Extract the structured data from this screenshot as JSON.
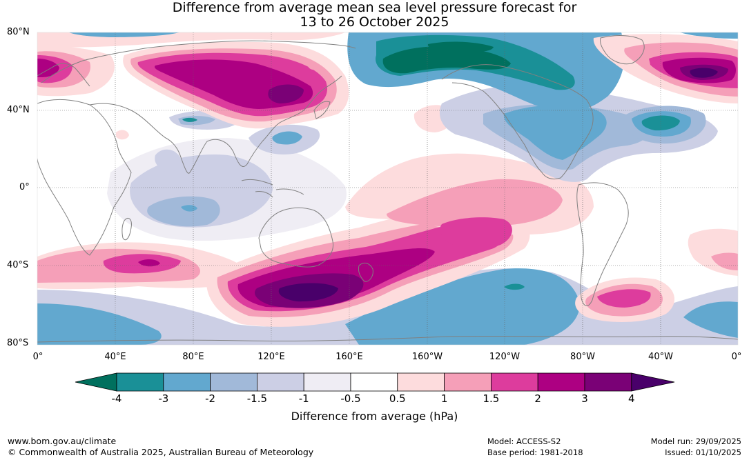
{
  "title_line1": "Difference from average mean sea level pressure forecast for",
  "title_line2": "13 to 26 October 2025",
  "lat_labels": [
    "80°N",
    "40°N",
    "0°",
    "40°S",
    "80°S"
  ],
  "lon_labels": [
    "0°",
    "40°E",
    "80°E",
    "120°E",
    "160°E",
    "160°W",
    "120°W",
    "80°W",
    "40°W",
    "0°"
  ],
  "colorbar": {
    "title": "Difference from average (hPa)",
    "tick_labels": [
      "-4",
      "-3",
      "-2",
      "-1.5",
      "-1",
      "-0.5",
      "0.5",
      "1",
      "1.5",
      "2",
      "3",
      "4"
    ],
    "colors": [
      "#00705e",
      "#1a9097",
      "#62a8cf",
      "#a1b9d9",
      "#cccfe5",
      "#efedf4",
      "#ffffff",
      "#fddcdd",
      "#f59fb8",
      "#dd3c9d",
      "#ad0082",
      "#7a0176",
      "#49006a"
    ]
  },
  "footer": {
    "website": "www.bom.gov.au/climate",
    "copyright": "© Commonwealth of Australia 2025, Australian Bureau of Meteorology",
    "model": "Model: ACCESS-S2",
    "base_period": "Base period: 1981-2018",
    "model_run": "Model run: 29/09/2025",
    "issued": "Issued: 01/10/2025"
  },
  "map_colors": {
    "neg4": "#00705e",
    "neg3": "#1a9097",
    "neg2": "#62a8cf",
    "neg15": "#a1b9d9",
    "neg1": "#cccfe5",
    "neg05": "#efedf4",
    "pos05": "#fddcdd",
    "pos1": "#f59fb8",
    "pos15": "#dd3c9d",
    "pos2": "#ad0082",
    "pos3": "#7a0176",
    "pos4": "#49006a",
    "coast": "#808080",
    "grid": "#666666"
  }
}
